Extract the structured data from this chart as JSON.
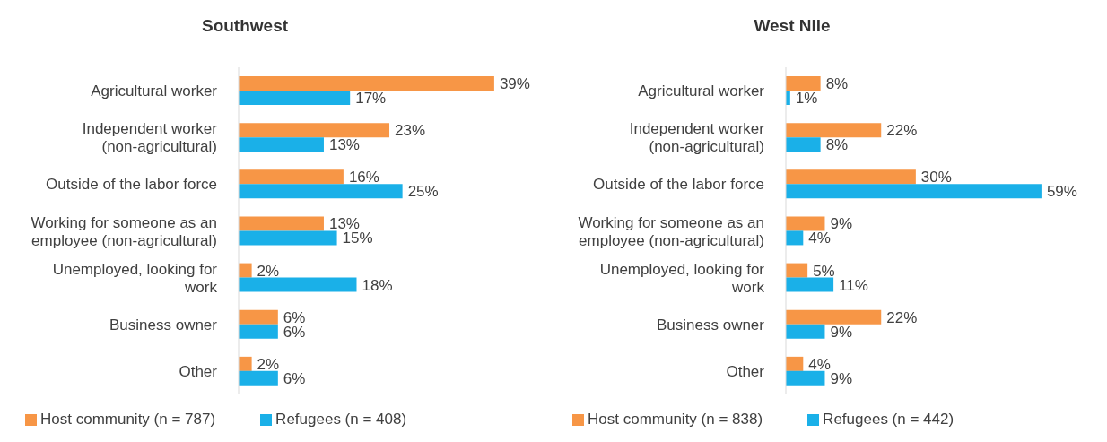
{
  "chart_data": [
    {
      "type": "bar",
      "orientation": "horizontal",
      "title": "Southwest",
      "legend": "bottom",
      "categories": [
        "Agricultural worker",
        "Independent worker (non-agricultural)",
        "Outside of the labor force",
        "Working for someone as an employee (non-agricultural)",
        "Unemployed, looking for work",
        "Business owner",
        "Other"
      ],
      "series": [
        {
          "name": "Host community (n = 787)",
          "color": "#f79646",
          "values": [
            39,
            23,
            16,
            13,
            2,
            6,
            2
          ],
          "value_labels": [
            "39%",
            "23%",
            "16%",
            "13%",
            "2%",
            "6%",
            "2%"
          ]
        },
        {
          "name": "Refugees (n = 408)",
          "color": "#1ab0e8",
          "values": [
            17,
            13,
            25,
            15,
            18,
            6,
            6
          ],
          "value_labels": [
            "17%",
            "13%",
            "25%",
            "15%",
            "18%",
            "6%",
            "6%"
          ]
        }
      ]
    },
    {
      "type": "bar",
      "orientation": "horizontal",
      "title": "West Nile",
      "legend": "bottom",
      "categories": [
        "Agricultural worker",
        "Independent worker (non-agricultural)",
        "Outside of the labor force",
        "Working for someone as an employee (non-agricultural)",
        "Unemployed, looking for work",
        "Business owner",
        "Other"
      ],
      "series": [
        {
          "name": "Host community (n = 838)",
          "color": "#f79646",
          "values": [
            8,
            22,
            30,
            9,
            5,
            22,
            4
          ],
          "value_labels": [
            "8%",
            "22%",
            "30%",
            "9%",
            "5%",
            "22%",
            "4%"
          ]
        },
        {
          "name": "Refugees (n = 442)",
          "color": "#1ab0e8",
          "values": [
            1,
            8,
            59,
            4,
            11,
            9,
            9
          ],
          "value_labels": [
            "1%",
            "8%",
            "59%",
            "4%",
            "11%",
            "9%",
            "9%"
          ]
        }
      ]
    }
  ]
}
